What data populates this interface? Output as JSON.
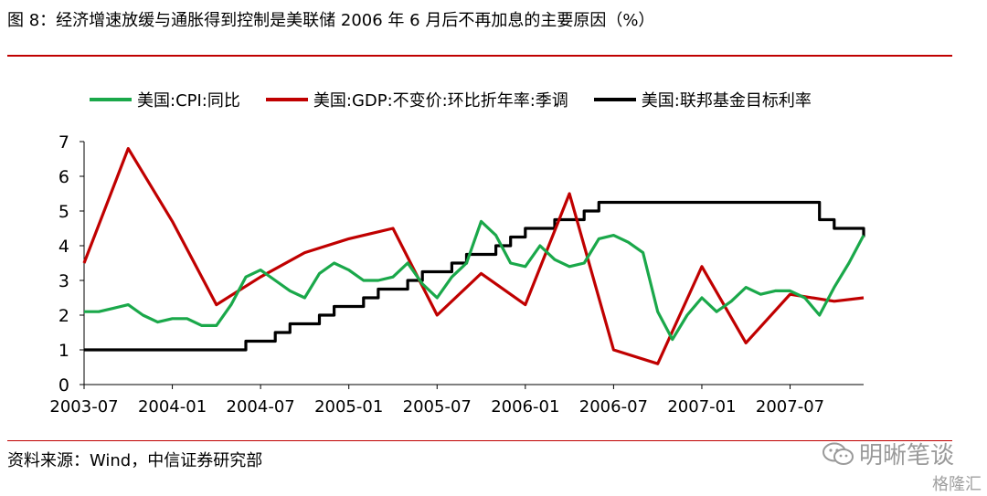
{
  "title": "图 8：经济增速放缓与通胀得到控制是美联储 2006 年 6 月后不再加息的主要原因（%）",
  "source": "资料来源：Wind，中信证券研究部",
  "watermark": "明晰笔谈",
  "watermark_sub": "格隆汇",
  "colors": {
    "cpi": "#1aa84a",
    "gdp": "#c00000",
    "fed": "#000000",
    "rule": "#c00000"
  },
  "chart_data": {
    "type": "line",
    "x_tick_labels": [
      "2003-07",
      "2004-01",
      "2004-07",
      "2005-01",
      "2005-07",
      "2006-01",
      "2006-07",
      "2007-01",
      "2007-07"
    ],
    "yticks": [
      0,
      1,
      2,
      3,
      4,
      5,
      6,
      7
    ],
    "ylim": [
      0,
      7
    ],
    "xlim": [
      "2003-07",
      "2007-12"
    ],
    "grid": false,
    "legend_position": "top",
    "series": [
      {
        "name": "美国:CPI:同比",
        "key": "cpi",
        "x": [
          "2003-07",
          "2003-08",
          "2003-09",
          "2003-10",
          "2003-11",
          "2003-12",
          "2004-01",
          "2004-02",
          "2004-03",
          "2004-04",
          "2004-05",
          "2004-06",
          "2004-07",
          "2004-08",
          "2004-09",
          "2004-10",
          "2004-11",
          "2004-12",
          "2005-01",
          "2005-02",
          "2005-03",
          "2005-04",
          "2005-05",
          "2005-06",
          "2005-07",
          "2005-08",
          "2005-09",
          "2005-10",
          "2005-11",
          "2005-12",
          "2006-01",
          "2006-02",
          "2006-03",
          "2006-04",
          "2006-05",
          "2006-06",
          "2006-07",
          "2006-08",
          "2006-09",
          "2006-10",
          "2006-11",
          "2006-12",
          "2007-01",
          "2007-02",
          "2007-03",
          "2007-04",
          "2007-05",
          "2007-06",
          "2007-07",
          "2007-08",
          "2007-09",
          "2007-10",
          "2007-11",
          "2007-12"
        ],
        "values": [
          2.1,
          2.1,
          2.2,
          2.3,
          2.0,
          1.8,
          1.9,
          1.9,
          1.7,
          1.7,
          2.3,
          3.1,
          3.3,
          3.0,
          2.7,
          2.5,
          3.2,
          3.5,
          3.3,
          3.0,
          3.0,
          3.1,
          3.5,
          2.9,
          2.5,
          3.1,
          3.5,
          4.7,
          4.3,
          3.5,
          3.4,
          4.0,
          3.6,
          3.4,
          3.5,
          4.2,
          4.3,
          4.1,
          3.8,
          2.1,
          1.3,
          2.0,
          2.5,
          2.1,
          2.4,
          2.8,
          2.6,
          2.7,
          2.7,
          2.5,
          2.0,
          2.8,
          3.5,
          4.3
        ]
      },
      {
        "name": "美国:GDP:不变价:环比折年率:季调",
        "key": "gdp",
        "x": [
          "2003-07",
          "2003-10",
          "2004-01",
          "2004-04",
          "2004-07",
          "2004-10",
          "2005-01",
          "2005-04",
          "2005-07",
          "2005-10",
          "2006-01",
          "2006-04",
          "2006-07",
          "2006-10",
          "2007-01",
          "2007-04",
          "2007-07",
          "2007-10",
          "2007-12"
        ],
        "values": [
          3.5,
          6.8,
          4.7,
          2.3,
          3.1,
          3.8,
          4.2,
          4.5,
          2.0,
          3.2,
          2.3,
          5.5,
          1.0,
          0.6,
          3.4,
          1.2,
          2.6,
          2.4,
          2.5
        ]
      },
      {
        "name": "美国:联邦基金目标利率",
        "key": "fed",
        "step": true,
        "x": [
          "2003-07",
          "2004-06",
          "2004-08",
          "2004-09",
          "2004-11",
          "2004-12",
          "2005-02",
          "2005-03",
          "2005-05",
          "2005-06",
          "2005-08",
          "2005-09",
          "2005-11",
          "2005-12",
          "2006-01",
          "2006-03",
          "2006-05",
          "2006-06",
          "2007-09",
          "2007-10",
          "2007-12"
        ],
        "values": [
          1.0,
          1.25,
          1.5,
          1.75,
          2.0,
          2.25,
          2.5,
          2.75,
          3.0,
          3.25,
          3.5,
          3.75,
          4.0,
          4.25,
          4.5,
          4.75,
          5.0,
          5.25,
          4.75,
          4.5,
          4.25
        ]
      }
    ]
  }
}
